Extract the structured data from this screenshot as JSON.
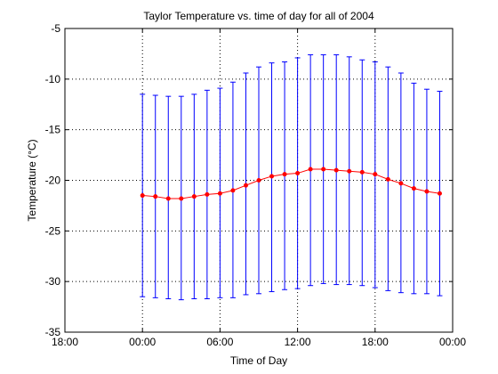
{
  "chart_data": {
    "type": "line",
    "title": "Taylor Temperature vs. time of day for all of 2004",
    "xlabel": "Time of Day",
    "ylabel": "Temperature (°C)",
    "xlim": [
      -6,
      24
    ],
    "ylim": [
      -35,
      -5
    ],
    "xticks": [
      -6,
      0,
      6,
      12,
      18,
      24
    ],
    "xticklabels": [
      "18:00",
      "00:00",
      "06:00",
      "12:00",
      "18:00",
      "00:00"
    ],
    "yticks": [
      -35,
      -30,
      -25,
      -20,
      -15,
      -10,
      -5
    ],
    "yticklabels": [
      "-35",
      "-30",
      "-25",
      "-20",
      "-15",
      "-10",
      "-5"
    ],
    "grid": true,
    "legend": "none",
    "colors": {
      "line": "#ff0000",
      "markers": "#ff0000",
      "errorbars": "#0000ff"
    },
    "series": [
      {
        "x": [
          0,
          1,
          2,
          3,
          4,
          5,
          6,
          7,
          8,
          9,
          10,
          11,
          12,
          13,
          14,
          15,
          16,
          17,
          18,
          19,
          20,
          21,
          22,
          23
        ],
        "y": [
          -21.5,
          -21.6,
          -21.8,
          -21.8,
          -21.6,
          -21.4,
          -21.3,
          -21.0,
          -20.5,
          -20.0,
          -19.6,
          -19.4,
          -19.3,
          -18.9,
          -18.9,
          -19.0,
          -19.1,
          -19.2,
          -19.4,
          -19.9,
          -20.3,
          -20.8,
          -21.1,
          -21.3
        ],
        "upper": [
          -11.5,
          -11.6,
          -11.7,
          -11.7,
          -11.5,
          -11.1,
          -10.9,
          -10.3,
          -9.4,
          -8.8,
          -8.4,
          -8.3,
          -7.9,
          -7.6,
          -7.6,
          -7.6,
          -7.8,
          -8.1,
          -8.3,
          -8.8,
          -9.4,
          -10.4,
          -11.0,
          -11.2
        ],
        "lower": [
          -31.5,
          -31.6,
          -31.7,
          -31.8,
          -31.7,
          -31.7,
          -31.6,
          -31.6,
          -31.3,
          -31.2,
          -31.0,
          -30.8,
          -30.7,
          -30.4,
          -30.2,
          -30.3,
          -30.3,
          -30.4,
          -30.6,
          -30.9,
          -31.1,
          -31.2,
          -31.2,
          -31.4
        ]
      }
    ]
  }
}
